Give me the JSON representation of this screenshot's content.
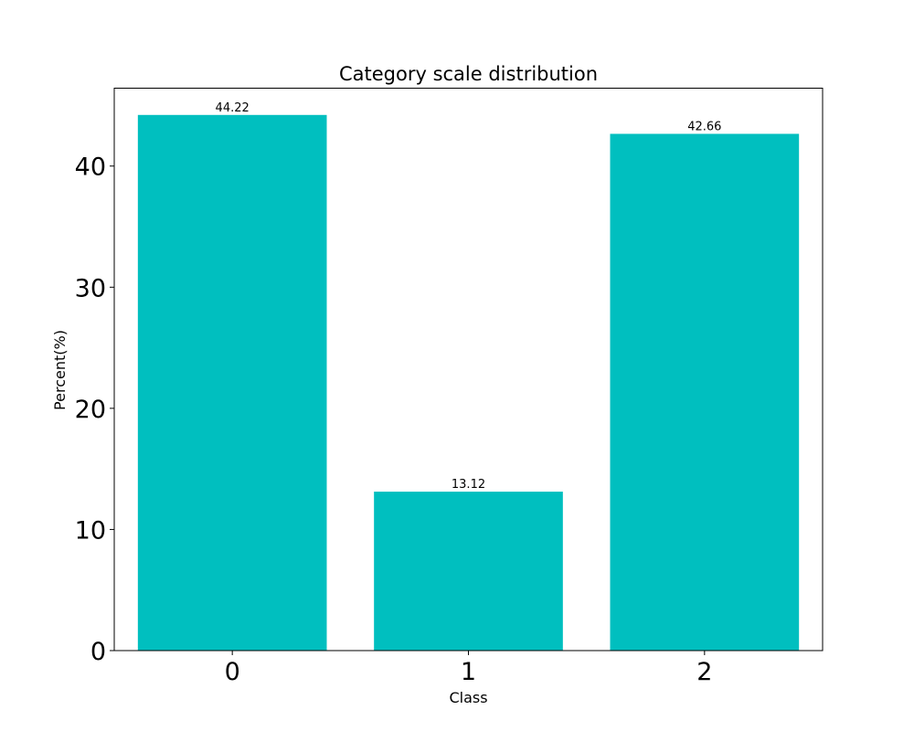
{
  "chart_data": {
    "type": "bar",
    "title": "Category scale distribution",
    "xlabel": "Class",
    "ylabel": "Percent(%)",
    "categories": [
      "0",
      "1",
      "2"
    ],
    "values": [
      44.22,
      13.12,
      42.66
    ],
    "value_labels": [
      "44.22",
      "13.12",
      "42.66"
    ],
    "ylim": [
      0,
      46.43
    ],
    "yticks": [
      0,
      10,
      20,
      30,
      40
    ],
    "ytick_labels": [
      "0",
      "10",
      "20",
      "30",
      "40"
    ],
    "bar_color": "#00bfbf",
    "grid": false,
    "legend": "none"
  }
}
